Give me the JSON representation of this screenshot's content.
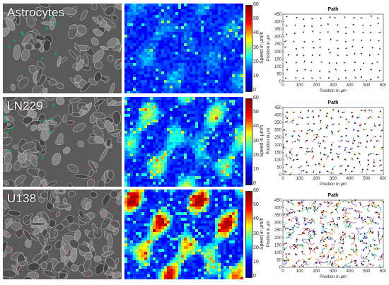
{
  "rows": [
    {
      "label": "Astrocytes",
      "speed_level": "low",
      "track_spread": "short"
    },
    {
      "label": "LN229",
      "speed_level": "medium",
      "track_spread": "medium"
    },
    {
      "label": "U138",
      "speed_level": "high",
      "track_spread": "long"
    }
  ],
  "colorbar": {
    "label": "Speed in μm/h",
    "ticks": [
      "60",
      "50",
      "40",
      "30",
      "20",
      "10",
      "0"
    ],
    "colors": [
      "#00008f",
      "#0000ff",
      "#00ffff",
      "#ffff00",
      "#ff0000",
      "#800000"
    ]
  },
  "chart_data": [
    {
      "type": "scatter",
      "title": "Path",
      "xlabel": "Position in μm",
      "ylabel": "Position in μm",
      "xlim": [
        0,
        600
      ],
      "ylim": [
        0,
        450
      ],
      "xticks": [
        "0",
        "100",
        "200",
        "300",
        "400",
        "500",
        "600"
      ],
      "yticks": [
        "0",
        "50",
        "100",
        "150",
        "200",
        "250",
        "300",
        "350",
        "400",
        "450"
      ],
      "grid_spacing_um": 50,
      "track_length_um": 12
    },
    {
      "type": "scatter",
      "title": "Path",
      "xlabel": "Position in μm",
      "ylabel": "Position in μm",
      "xlim": [
        0,
        600
      ],
      "ylim": [
        0,
        450
      ],
      "xticks": [
        "0",
        "100",
        "200",
        "300",
        "400",
        "500",
        "600"
      ],
      "yticks": [
        "0",
        "50",
        "100",
        "150",
        "200",
        "250",
        "300",
        "350",
        "400",
        "450"
      ],
      "grid_spacing_um": 40,
      "track_length_um": 28
    },
    {
      "type": "scatter",
      "title": "Path",
      "xlabel": "Position in μm",
      "ylabel": "Position in μm",
      "xlim": [
        0,
        600
      ],
      "ylim": [
        0,
        450
      ],
      "xticks": [
        "0",
        "100",
        "200",
        "300",
        "400",
        "500",
        "600"
      ],
      "yticks": [
        "0",
        "50",
        "100",
        "150",
        "200",
        "250",
        "300",
        "350",
        "400",
        "450"
      ],
      "grid_spacing_um": 35,
      "track_length_um": 55
    }
  ]
}
